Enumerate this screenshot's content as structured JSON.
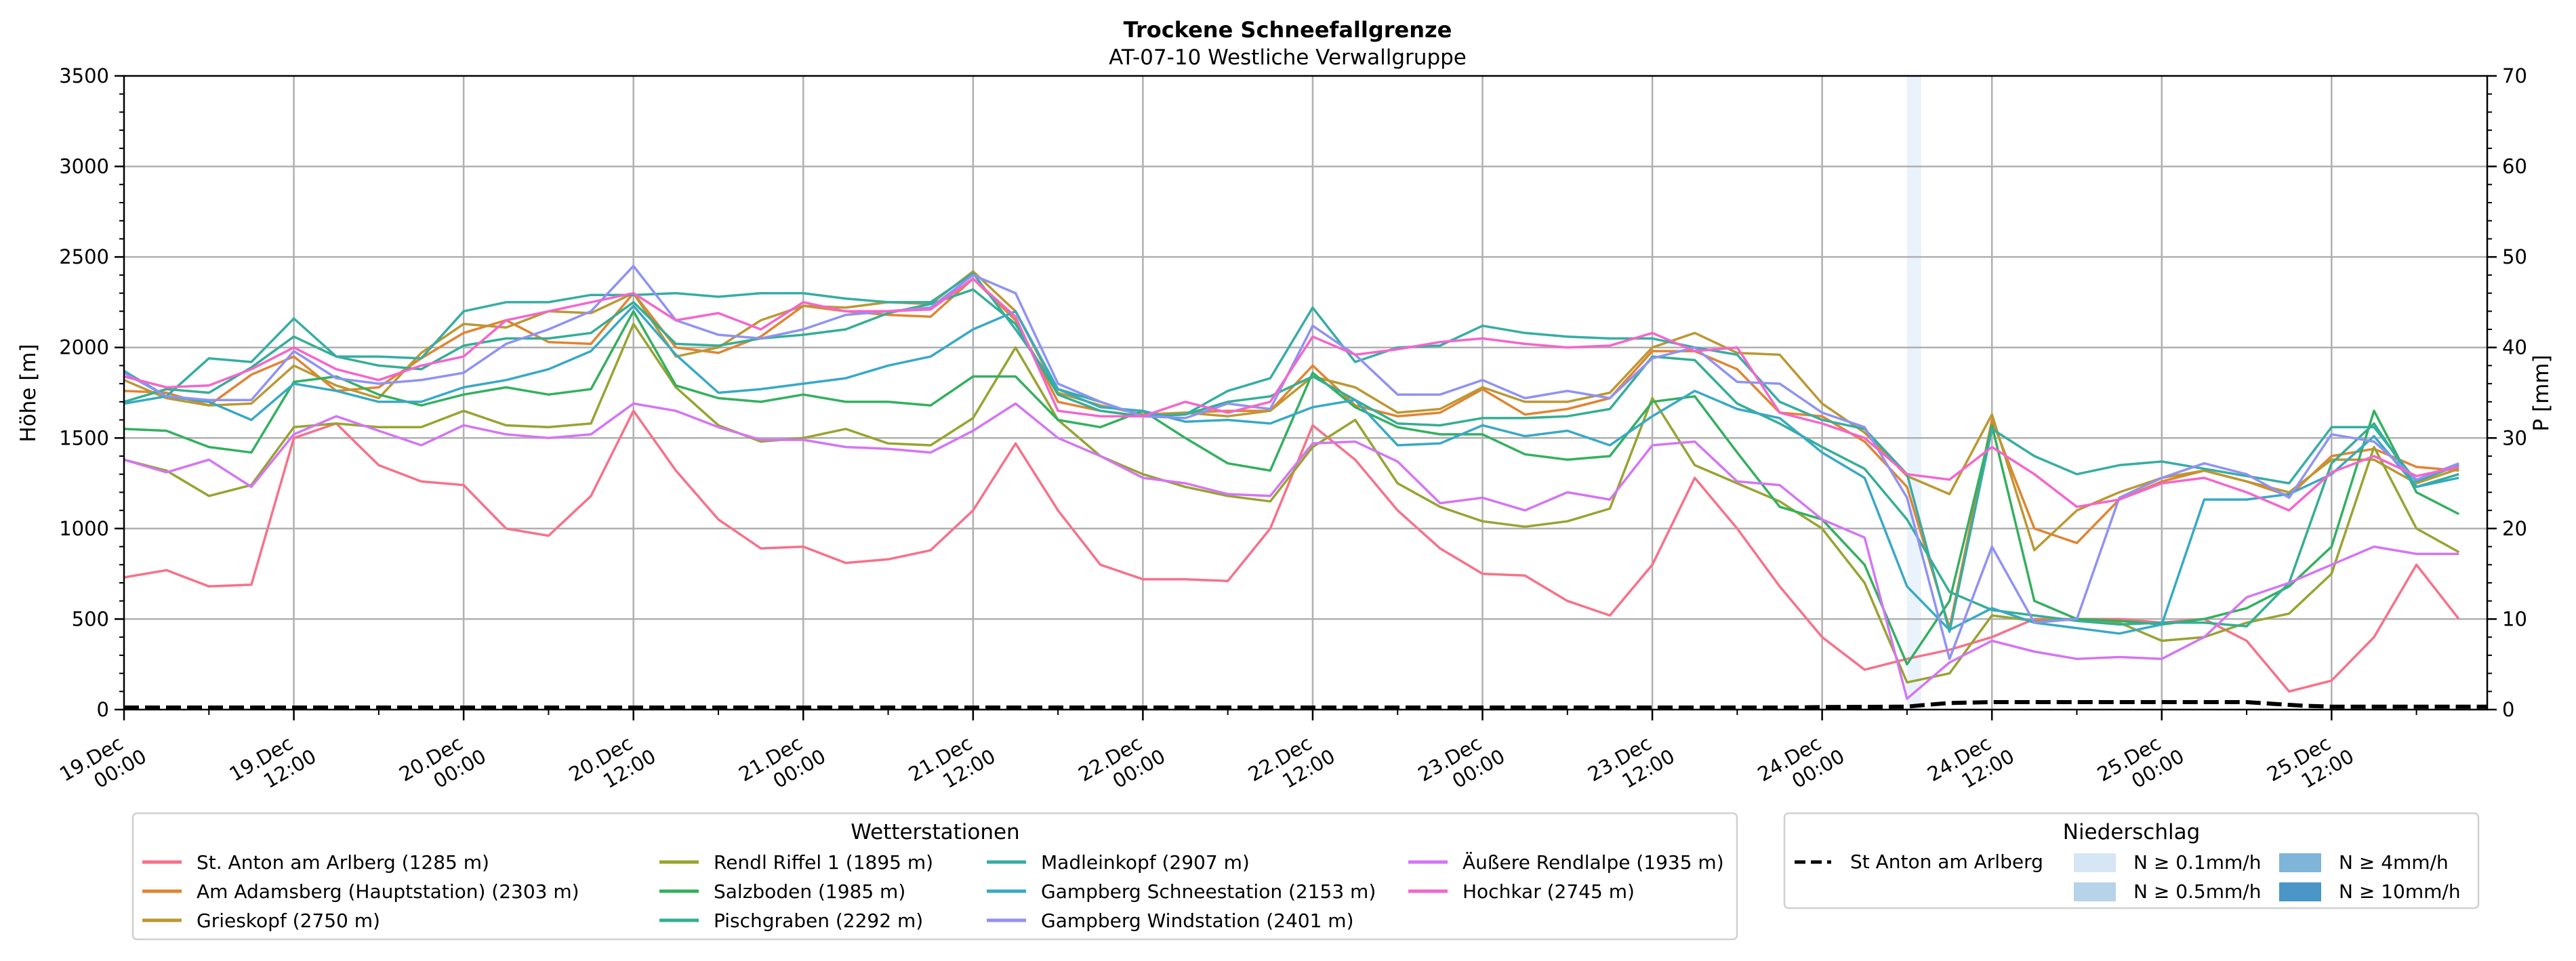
{
  "chart_data": {
    "type": "line",
    "title": "Trockene Schneefallgrenze",
    "subtitle": "AT-07-10 Westliche Verwallgruppe",
    "ylabel": "Höhe [m]",
    "y2label": "P [mm]",
    "ylim": [
      0,
      3500
    ],
    "y2lim": [
      0,
      70
    ],
    "yticks": [
      "0",
      "500",
      "1000",
      "1500",
      "2000",
      "2500",
      "3000",
      "3500"
    ],
    "y2ticks": [
      "0",
      "10",
      "20",
      "30",
      "40",
      "50",
      "60",
      "70"
    ],
    "grid": true,
    "x_unit": "hours since 19.Dec 00:00",
    "xlim": [
      0,
      167
    ],
    "xticks": [
      {
        "h": 0,
        "line1": "19.Dec",
        "line2": "00:00"
      },
      {
        "h": 12,
        "line1": "19.Dec",
        "line2": "12:00"
      },
      {
        "h": 24,
        "line1": "20.Dec",
        "line2": "00:00"
      },
      {
        "h": 36,
        "line1": "20.Dec",
        "line2": "12:00"
      },
      {
        "h": 48,
        "line1": "21.Dec",
        "line2": "00:00"
      },
      {
        "h": 60,
        "line1": "21.Dec",
        "line2": "12:00"
      },
      {
        "h": 72,
        "line1": "22.Dec",
        "line2": "00:00"
      },
      {
        "h": 84,
        "line1": "22.Dec",
        "line2": "12:00"
      },
      {
        "h": 96,
        "line1": "23.Dec",
        "line2": "00:00"
      },
      {
        "h": 108,
        "line1": "23.Dec",
        "line2": "12:00"
      },
      {
        "h": 120,
        "line1": "24.Dec",
        "line2": "00:00"
      },
      {
        "h": 132,
        "line1": "24.Dec",
        "line2": "12:00"
      },
      {
        "h": 144,
        "line1": "25.Dec",
        "line2": "00:00"
      },
      {
        "h": 156,
        "line1": "25.Dec",
        "line2": "12:00"
      }
    ],
    "x": [
      0,
      3,
      6,
      9,
      12,
      15,
      18,
      21,
      24,
      27,
      30,
      33,
      36,
      39,
      42,
      45,
      48,
      51,
      54,
      57,
      60,
      63,
      66,
      69,
      72,
      75,
      78,
      81,
      84,
      87,
      90,
      93,
      96,
      99,
      102,
      105,
      108,
      111,
      114,
      117,
      120,
      123,
      126,
      129,
      132,
      135,
      138,
      141,
      144,
      147,
      150,
      153,
      156,
      159,
      162,
      165
    ],
    "series": [
      {
        "name": "St. Anton am Arlberg (1285 m)",
        "color": "#f77189",
        "values": [
          730,
          770,
          680,
          690,
          1500,
          1580,
          1350,
          1260,
          1240,
          1000,
          960,
          1180,
          1650,
          1320,
          1050,
          890,
          900,
          810,
          830,
          880,
          1100,
          1470,
          1100,
          800,
          720,
          720,
          710,
          1000,
          1570,
          1380,
          1100,
          890,
          750,
          740,
          600,
          520,
          800,
          1280,
          1000,
          680,
          400,
          220,
          280,
          330,
          400,
          500,
          500,
          500,
          480,
          500,
          380,
          100,
          160,
          400,
          800,
          500
        ]
      },
      {
        "name": "Am Adamsberg (Hauptstation) (2303 m)",
        "color": "#e18432",
        "values": [
          1760,
          1750,
          1680,
          1850,
          1950,
          1760,
          1780,
          1940,
          2080,
          2150,
          2030,
          2020,
          2300,
          2000,
          1970,
          2060,
          2230,
          2200,
          2180,
          2170,
          2380,
          2150,
          1700,
          1650,
          1620,
          1640,
          1650,
          1650,
          1900,
          1680,
          1620,
          1640,
          1770,
          1630,
          1660,
          1720,
          1980,
          1980,
          1880,
          1640,
          1620,
          1480,
          1230,
          450,
          1600,
          1000,
          920,
          1160,
          1260,
          1320,
          1260,
          1180,
          1400,
          1440,
          1340,
          1320
        ]
      },
      {
        "name": "Grieskopf (2750 m)",
        "color": "#bb9832",
        "values": [
          1820,
          1720,
          1680,
          1690,
          1900,
          1790,
          1720,
          1970,
          2130,
          2110,
          2200,
          2190,
          2300,
          1950,
          2000,
          2150,
          2230,
          2220,
          2250,
          2240,
          2420,
          2200,
          1750,
          1680,
          1630,
          1640,
          1620,
          1650,
          1840,
          1780,
          1640,
          1660,
          1780,
          1700,
          1700,
          1750,
          2000,
          2080,
          1970,
          1960,
          1690,
          1530,
          1290,
          1190,
          1630,
          880,
          1100,
          1200,
          1280,
          1320,
          1260,
          1200,
          1380,
          1380,
          1250,
          1330
        ]
      },
      {
        "name": "Rendl Riffel 1 (1895 m)",
        "color": "#97a431",
        "values": [
          1380,
          1320,
          1180,
          1240,
          1560,
          1580,
          1560,
          1560,
          1650,
          1570,
          1560,
          1580,
          2130,
          1780,
          1570,
          1480,
          1500,
          1550,
          1470,
          1460,
          1610,
          2000,
          1600,
          1400,
          1300,
          1230,
          1180,
          1150,
          1450,
          1600,
          1250,
          1120,
          1040,
          1010,
          1040,
          1110,
          1720,
          1350,
          1250,
          1150,
          1000,
          700,
          150,
          200,
          520,
          490,
          500,
          480,
          380,
          400,
          480,
          530,
          750,
          1450,
          1000,
          870
        ]
      },
      {
        "name": "Salzboden (1985 m)",
        "color": "#33b05f",
        "values": [
          1550,
          1540,
          1450,
          1420,
          1810,
          1840,
          1740,
          1680,
          1740,
          1780,
          1740,
          1770,
          2200,
          1790,
          1720,
          1700,
          1740,
          1700,
          1700,
          1680,
          1840,
          1840,
          1600,
          1560,
          1650,
          1500,
          1360,
          1320,
          1860,
          1670,
          1560,
          1520,
          1520,
          1410,
          1380,
          1400,
          1700,
          1730,
          1420,
          1120,
          1050,
          800,
          250,
          600,
          1570,
          600,
          500,
          490,
          470,
          500,
          560,
          680,
          900,
          1650,
          1200,
          1080
        ]
      },
      {
        "name": "Pischgraben (2292 m)",
        "color": "#35ae93",
        "values": [
          1700,
          1770,
          1750,
          1890,
          2060,
          1950,
          1900,
          1880,
          2010,
          2050,
          2050,
          2080,
          2250,
          2020,
          2010,
          2050,
          2070,
          2100,
          2190,
          2240,
          2320,
          2130,
          1740,
          1650,
          1620,
          1630,
          1700,
          1730,
          1840,
          1710,
          1580,
          1570,
          1610,
          1610,
          1620,
          1660,
          1950,
          1930,
          1690,
          1580,
          1450,
          1330,
          1050,
          650,
          550,
          520,
          490,
          470,
          480,
          480,
          460,
          700,
          1360,
          1580,
          1230,
          1300
        ]
      },
      {
        "name": "Madleinkopf (2907 m)",
        "color": "#36ada4",
        "values": [
          1870,
          1730,
          1940,
          1920,
          2160,
          1950,
          1950,
          1940,
          2200,
          2250,
          2250,
          2290,
          2290,
          2300,
          2280,
          2300,
          2300,
          2270,
          2250,
          2250,
          2410,
          2100,
          1770,
          1700,
          1620,
          1630,
          1760,
          1830,
          2220,
          1920,
          2000,
          2010,
          2120,
          2080,
          2060,
          2050,
          2050,
          2000,
          1960,
          1700,
          1600,
          1550,
          1300,
          430,
          1550,
          1400,
          1300,
          1350,
          1370,
          1330,
          1290,
          1250,
          1560,
          1560,
          1260,
          1350
        ]
      },
      {
        "name": "Gampberg Schneestation (2153 m)",
        "color": "#38a9c5",
        "values": [
          1690,
          1730,
          1700,
          1600,
          1800,
          1760,
          1700,
          1700,
          1780,
          1820,
          1880,
          1980,
          2230,
          1960,
          1750,
          1770,
          1800,
          1830,
          1900,
          1950,
          2100,
          2200,
          1770,
          1670,
          1650,
          1590,
          1600,
          1580,
          1670,
          1710,
          1460,
          1470,
          1570,
          1510,
          1540,
          1460,
          1620,
          1760,
          1660,
          1610,
          1420,
          1280,
          680,
          440,
          560,
          480,
          450,
          420,
          470,
          1160,
          1160,
          1190,
          1300,
          1510,
          1230,
          1280
        ]
      },
      {
        "name": "Gampberg Windstation (2401 m)",
        "color": "#8f92f4",
        "values": [
          1860,
          1730,
          1710,
          1710,
          1980,
          1830,
          1800,
          1820,
          1860,
          2020,
          2100,
          2200,
          2450,
          2150,
          2070,
          2050,
          2100,
          2180,
          2200,
          2220,
          2400,
          2300,
          1800,
          1700,
          1620,
          1610,
          1690,
          1660,
          2120,
          1960,
          1740,
          1740,
          1820,
          1720,
          1760,
          1720,
          1940,
          2000,
          1810,
          1800,
          1640,
          1560,
          1170,
          280,
          900,
          480,
          500,
          1170,
          1280,
          1360,
          1300,
          1170,
          1520,
          1480,
          1270,
          1360
        ]
      },
      {
        "name": "Äußere Rendlalpe (1935 m)",
        "color": "#d475f4",
        "values": [
          1380,
          1310,
          1380,
          1230,
          1520,
          1620,
          1540,
          1460,
          1570,
          1520,
          1500,
          1520,
          1690,
          1650,
          1560,
          1490,
          1490,
          1450,
          1440,
          1420,
          1540,
          1690,
          1500,
          1400,
          1280,
          1250,
          1190,
          1180,
          1470,
          1480,
          1370,
          1140,
          1170,
          1100,
          1200,
          1160,
          1460,
          1480,
          1260,
          1240,
          1050,
          950,
          60,
          260,
          380,
          320,
          280,
          290,
          280,
          400,
          620,
          700,
          800,
          900,
          860,
          860
        ]
      },
      {
        "name": "Hochkar (2745 m)",
        "color": "#f565cc",
        "values": [
          1840,
          1780,
          1790,
          1880,
          2000,
          1880,
          1820,
          1900,
          1950,
          2150,
          2200,
          2250,
          2300,
          2150,
          2190,
          2100,
          2250,
          2200,
          2200,
          2210,
          2380,
          2170,
          1650,
          1620,
          1620,
          1700,
          1640,
          1700,
          2060,
          1960,
          1990,
          2030,
          2050,
          2020,
          2000,
          2010,
          2080,
          1980,
          2000,
          1640,
          1580,
          1500,
          1300,
          1270,
          1450,
          1300,
          1120,
          1160,
          1250,
          1280,
          1200,
          1100,
          1310,
          1400,
          1290,
          1340
        ]
      }
    ],
    "precip_line": {
      "name": "St Anton am Arlberg",
      "style": "dashed",
      "color": "#000000",
      "x": [
        0,
        118,
        120,
        126,
        127,
        129,
        132,
        150,
        152,
        154,
        156,
        167
      ],
      "values": [
        0,
        0,
        0.05,
        0.1,
        0.25,
        0.5,
        0.6,
        0.6,
        0.4,
        0.2,
        0.1,
        0.1
      ]
    },
    "precip_shading": [
      {
        "from_h": 126.0,
        "to_h": 127.0,
        "class": "N ≥ 0.1mm/h"
      }
    ],
    "legend_stations": {
      "title": "Wetterstationen",
      "position": "bottom-left"
    },
    "legend_precip": {
      "title": "Niederschlag",
      "position": "bottom-right",
      "line_label": "St Anton am Arlberg",
      "classes": [
        {
          "label": "N ≥ 0.1mm/h",
          "color": "#d6e6f4"
        },
        {
          "label": "N ≥ 0.5mm/h",
          "color": "#b6d3ea"
        },
        {
          "label": "N ≥ 4mm/h",
          "color": "#7fb5d8"
        },
        {
          "label": "N ≥ 10mm/h",
          "color": "#4a96c7"
        }
      ]
    }
  }
}
